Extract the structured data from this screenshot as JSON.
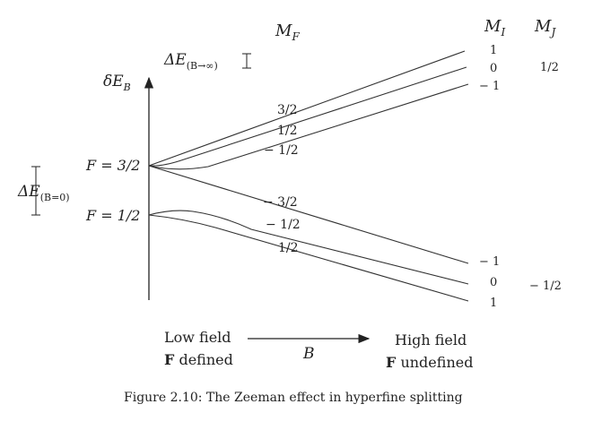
{
  "headers": {
    "mf": "M",
    "mf_sub": "F",
    "mi": "M",
    "mi_sub": "I",
    "mj": "M",
    "mj_sub": "J"
  },
  "axis_label": {
    "main": "δE",
    "sub": "B"
  },
  "delta_inf": {
    "main": "ΔE",
    "sub": "(B→∞)"
  },
  "delta_zero": {
    "main": "ΔE",
    "sub": "(B=0)"
  },
  "f_upper": "F = 3/2",
  "f_lower": "F = 1/2",
  "mf_upper": [
    "3/2",
    "1/2",
    "− 1/2"
  ],
  "mf_lower": [
    "− 3/2",
    "− 1/2",
    "1/2"
  ],
  "mi_upper": [
    "1",
    "0",
    "− 1"
  ],
  "mi_lower": [
    "− 1",
    "0",
    "1"
  ],
  "mj_upper": "1/2",
  "mj_lower": "− 1/2",
  "low_field": {
    "line1": "Low field",
    "line2_bold": "F",
    "line2_rest": " defined"
  },
  "high_field": {
    "line1": "High field",
    "line2_bold": "F",
    "line2_rest": " undefined"
  },
  "arrow_label": "B",
  "caption": "Figure 2.10: The Zeeman effect in hyperfine splitting"
}
